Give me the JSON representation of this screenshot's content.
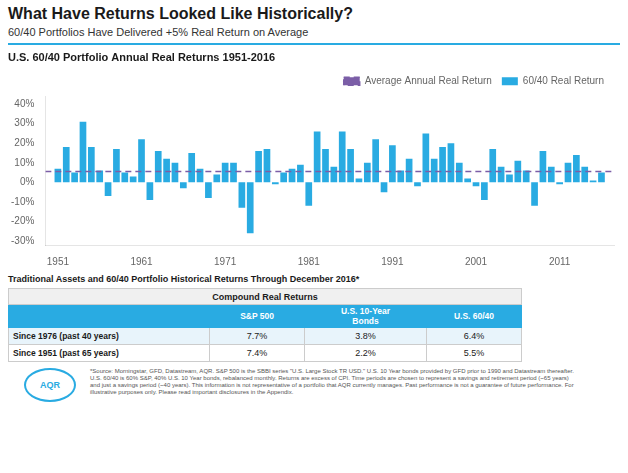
{
  "title": "What Have Returns Looked Like Historically?",
  "subtitle": "60/40 Portfolios Have Delivered +5% Real Return on Average",
  "separator_color": "#29ABE2",
  "chart_data": {
    "type": "bar",
    "title": "U.S. 60/40 Portfolio Annual Real Returns 1951-2016",
    "x": [
      1951,
      1952,
      1953,
      1954,
      1955,
      1956,
      1957,
      1958,
      1959,
      1960,
      1961,
      1962,
      1963,
      1964,
      1965,
      1966,
      1967,
      1968,
      1969,
      1970,
      1971,
      1972,
      1973,
      1974,
      1975,
      1976,
      1977,
      1978,
      1979,
      1980,
      1981,
      1982,
      1983,
      1984,
      1985,
      1986,
      1987,
      1988,
      1989,
      1990,
      1991,
      1992,
      1993,
      1994,
      1995,
      1996,
      1997,
      1998,
      1999,
      2000,
      2001,
      2002,
      2003,
      2004,
      2005,
      2006,
      2007,
      2008,
      2009,
      2010,
      2011,
      2012,
      2013,
      2014,
      2015,
      2016
    ],
    "series": [
      {
        "name": "60/40 Real Return",
        "color": "#29ABE2",
        "values": [
          0.07,
          0.18,
          0.05,
          0.31,
          0.18,
          0.06,
          -0.07,
          0.17,
          0.05,
          0.03,
          0.22,
          -0.09,
          0.16,
          0.12,
          0.1,
          -0.03,
          0.15,
          0.07,
          -0.08,
          0.04,
          0.1,
          0.1,
          -0.13,
          -0.26,
          0.16,
          0.17,
          -0.01,
          0.05,
          0.07,
          0.09,
          -0.12,
          0.26,
          0.17,
          0.08,
          0.26,
          0.17,
          0.02,
          0.1,
          0.22,
          -0.05,
          0.19,
          0.06,
          0.12,
          -0.02,
          0.25,
          0.12,
          0.18,
          0.2,
          0.1,
          0.02,
          -0.02,
          -0.09,
          0.17,
          0.08,
          0.04,
          0.11,
          0.06,
          -0.12,
          0.16,
          0.08,
          -0.01,
          0.1,
          0.14,
          0.08,
          0.01,
          0.05
        ]
      }
    ],
    "reference_lines": [
      {
        "name": "Average Annual Real Return",
        "value": 0.055,
        "color": "#7B5EA7",
        "line_style": "dashed"
      }
    ],
    "xlim": [
      1949.5,
      2017.5
    ],
    "xticks": [
      1951,
      1961,
      1971,
      1981,
      1991,
      2001,
      2011
    ],
    "ylim": [
      -0.32,
      0.44
    ],
    "yticks": [
      {
        "value": -0.3,
        "label": "-30%"
      },
      {
        "value": -0.2,
        "label": "-20%"
      },
      {
        "value": -0.1,
        "label": "-10%"
      },
      {
        "value": 0.0,
        "label": "0%"
      },
      {
        "value": 0.1,
        "label": "10%"
      },
      {
        "value": 0.2,
        "label": "20%"
      },
      {
        "value": 0.3,
        "label": "30%"
      },
      {
        "value": 0.4,
        "label": "40%"
      }
    ],
    "grid": false,
    "legend": "upper right"
  },
  "table": {
    "title": "Traditional Assets and 60/40 Portfolio Historical Returns Through December 2016*",
    "header": "Compound Real Returns",
    "columns": [
      "S&P 500",
      "U.S. 10-Year\nBonds",
      "U.S. 60/40"
    ],
    "rows": [
      [
        "Since 1976 (past 40 years)",
        "7.7%",
        "3.8%",
        "6.4%"
      ],
      [
        "Since 1951 (past 65 years)",
        "7.4%",
        "2.2%",
        "5.5%"
      ]
    ],
    "header_color": "#29ABE2",
    "row_colors": [
      "#E8F4FB",
      "#FFFFFF"
    ]
  },
  "footer": {
    "source": "*Source: Morningstar, GFD, Datastream, AQR. S&P 500 is the SBBI series \"U.S. Large Stock TR USD.\" U.S. 10 Year bonds provided by GFD prior to 1990 and Datastream thereafter.\nU.S. 60/40 is 60% S&P, 40% U.S. 10 Year bonds, rebalanced monthly. Returns are excess of CPI. Time periods are chosen to represent a savings and retirement period (~65 years)\nand just a savings period (~40 years). This information is not representative of a portfolio that AQR currently manages. Past performance is not a guarantee of future performance. For\nillustrative purposes only. Please read important disclosures in the Appendix.",
    "logo": "AQR",
    "logo_color": "#29ABE2"
  }
}
